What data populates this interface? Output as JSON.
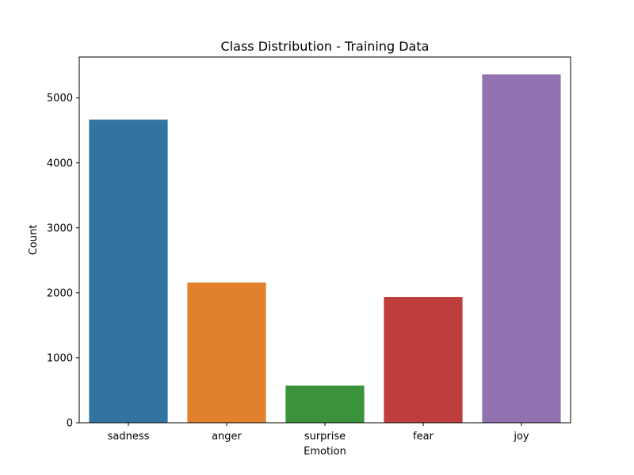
{
  "chart_data": {
    "type": "bar",
    "title": "Class Distribution - Training Data",
    "xlabel": "Emotion",
    "ylabel": "Count",
    "categories": [
      "sadness",
      "anger",
      "surprise",
      "fear",
      "joy"
    ],
    "values": [
      4666,
      2159,
      572,
      1937,
      5362
    ],
    "colors": [
      "#3274a1",
      "#e1812c",
      "#3a923a",
      "#c03d3e",
      "#9372b2"
    ],
    "ylim": [
      0,
      5630
    ],
    "yticks": [
      0,
      1000,
      2000,
      3000,
      4000,
      5000
    ],
    "grid": false,
    "legend": "none"
  }
}
